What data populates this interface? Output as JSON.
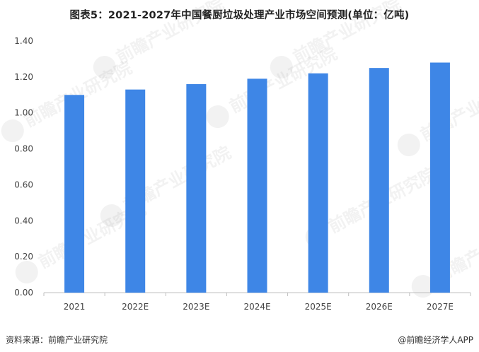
{
  "title": "图表5：2021-2027年中国餐厨垃圾处理产业市场空间预测(单位：亿吨)",
  "footer": {
    "source": "资料来源：前瞻产业研究院",
    "brand": "@前瞻经济学人APP"
  },
  "watermark": "前瞻产业研究院",
  "colors": {
    "bar": "#3e86e6",
    "axis": "#bfbfbf",
    "grid": "#d9d9d9"
  },
  "chart_data": {
    "type": "bar",
    "title": "图表5：2021-2027年中国餐厨垃圾处理产业市场空间预测(单位：亿吨)",
    "categories": [
      "2021",
      "2022E",
      "2023E",
      "2024E",
      "2025E",
      "2026E",
      "2027E"
    ],
    "values": [
      1.1,
      1.13,
      1.16,
      1.19,
      1.22,
      1.25,
      1.28
    ],
    "yticks": [
      "0.00",
      "0.20",
      "0.40",
      "0.60",
      "0.80",
      "1.00",
      "1.20",
      "1.40"
    ],
    "ylim": [
      0,
      1.4
    ],
    "grid": false,
    "legend": "none"
  }
}
